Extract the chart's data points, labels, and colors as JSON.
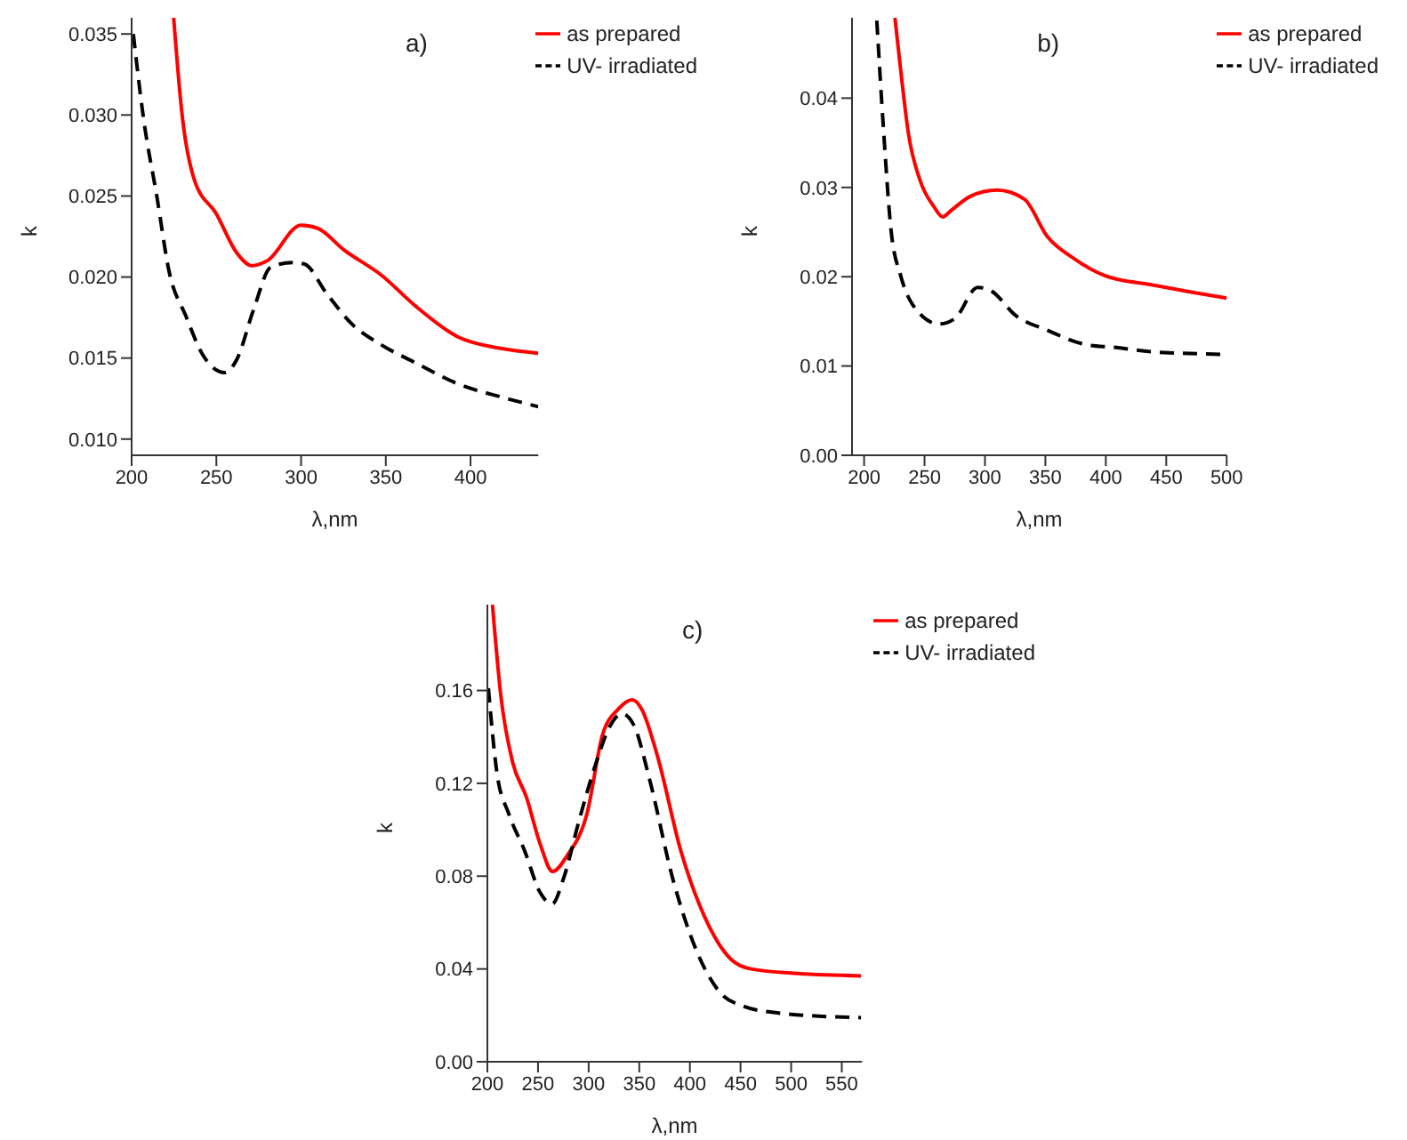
{
  "chart_data": [
    {
      "type": "line",
      "xlabel": "λ,nm",
      "ylabel": "k",
      "annotations": [
        "a)"
      ],
      "legend": "top right",
      "xlim": [
        200,
        440
      ],
      "ylim": [
        0.009,
        0.036
      ],
      "xticks": [
        200,
        250,
        300,
        350,
        400
      ],
      "yticks": [
        {
          "value": 0.01,
          "label": "0.010"
        },
        {
          "value": 0.015,
          "label": "0.015"
        },
        {
          "value": 0.02,
          "label": "0.020"
        },
        {
          "value": 0.025,
          "label": "0.025"
        },
        {
          "value": 0.03,
          "label": "0.030"
        },
        {
          "value": 0.035,
          "label": "0.035"
        }
      ],
      "series": [
        {
          "name": "as prepared",
          "color": "#ff0000",
          "line_style": "solid",
          "x": [
            224.8,
            229.8,
            237,
            250,
            262,
            271,
            280,
            300,
            310,
            325,
            347.6,
            367.7,
            392.7,
            417.8,
            440
          ],
          "values": [
            0.036,
            0.03,
            0.026,
            0.0239,
            0.0215,
            0.0207,
            0.021,
            0.0232,
            0.023,
            0.0217,
            0.0201,
            0.0182,
            0.0163,
            0.0156,
            0.0153
          ]
        },
        {
          "name": "UV- irradiated",
          "color": "#000000",
          "line_style": "dashed",
          "x": [
            201,
            207,
            215,
            222,
            232,
            242,
            255,
            262,
            272,
            282,
            295,
            302,
            315,
            330,
            347.6,
            367.7,
            392.7,
            418,
            440
          ],
          "values": [
            0.035,
            0.0298,
            0.0249,
            0.0204,
            0.0176,
            0.0152,
            0.0141,
            0.0149,
            0.018,
            0.0206,
            0.0209,
            0.0208,
            0.019,
            0.0171,
            0.0158,
            0.0147,
            0.0134,
            0.0126,
            0.012
          ]
        }
      ]
    },
    {
      "type": "line",
      "xlabel": "λ,nm",
      "ylabel": "k",
      "annotations": [
        "b)"
      ],
      "legend": "top right",
      "xlim": [
        190,
        500
      ],
      "ylim": [
        0,
        0.049
      ],
      "xticks": [
        200,
        250,
        300,
        350,
        400,
        450,
        500
      ],
      "yticks": [
        {
          "value": 0,
          "label": "0.00"
        },
        {
          "value": 0.01,
          "label": "0.01"
        },
        {
          "value": 0.02,
          "label": "0.02"
        },
        {
          "value": 0.03,
          "label": "0.03"
        },
        {
          "value": 0.04,
          "label": "0.04"
        }
      ],
      "series": [
        {
          "name": "as prepared",
          "color": "#ff0000",
          "line_style": "solid",
          "x": [
            225.5,
            230.3,
            236.7,
            246,
            258,
            265,
            271.8,
            287.8,
            310,
            332.5,
            351.6,
            374,
            399.5,
            437.8,
            469.7,
            500
          ],
          "values": [
            0.049,
            0.0431,
            0.036,
            0.0309,
            0.0278,
            0.0267,
            0.0274,
            0.029,
            0.0297,
            0.0287,
            0.0245,
            0.022,
            0.0201,
            0.0191,
            0.0183,
            0.0176
          ]
        },
        {
          "name": "UV- irradiated",
          "color": "#000000",
          "line_style": "dashed",
          "x": [
            210.5,
            216,
            222.3,
            230.3,
            240,
            262,
            275,
            294,
            304,
            326,
            351.6,
            383.5,
            405.9,
            437.8,
            500
          ],
          "values": [
            0.0487,
            0.0366,
            0.0252,
            0.0201,
            0.0169,
            0.0147,
            0.0153,
            0.0188,
            0.0185,
            0.0156,
            0.014,
            0.0124,
            0.0121,
            0.0116,
            0.0113
          ]
        }
      ]
    },
    {
      "type": "line",
      "xlabel": "λ,nm",
      "ylabel": "k",
      "annotations": [
        "c)"
      ],
      "legend": "top right",
      "xlim": [
        200,
        570
      ],
      "ylim": [
        0,
        0.197
      ],
      "xticks": [
        200,
        250,
        300,
        350,
        400,
        450,
        500,
        550
      ],
      "yticks": [
        {
          "value": 0,
          "label": "0.00"
        },
        {
          "value": 0.04,
          "label": "0.04"
        },
        {
          "value": 0.08,
          "label": "0.08"
        },
        {
          "value": 0.12,
          "label": "0.12"
        },
        {
          "value": 0.16,
          "label": "0.16"
        }
      ],
      "series": [
        {
          "name": "as prepared",
          "color": "#ff0000",
          "line_style": "solid",
          "x": [
            205,
            213.5,
            225,
            238.6,
            252,
            264.4,
            279,
            298.4,
            313.8,
            329.3,
            343,
            352.4,
            367.8,
            391,
            414,
            441,
            460.4,
            506.7,
            569
          ],
          "values": [
            0.197,
            0.157,
            0.129,
            0.114,
            0.094,
            0.082,
            0.089,
            0.107,
            0.141,
            0.152,
            0.156,
            0.152,
            0.132,
            0.091,
            0.063,
            0.044,
            0.04,
            0.038,
            0.037
          ]
        },
        {
          "name": "UV- irradiated",
          "color": "#000000",
          "line_style": "dashed",
          "x": [
            201,
            209.6,
            221,
            236.7,
            252,
            264,
            275.2,
            290.6,
            306,
            321.5,
            333,
            344.7,
            360,
            383,
            406.4,
            429.5,
            452.7,
            487.5,
            569
          ],
          "values": [
            0.161,
            0.124,
            0.107,
            0.091,
            0.073,
            0.068,
            0.079,
            0.104,
            0.127,
            0.145,
            0.15,
            0.145,
            0.122,
            0.079,
            0.048,
            0.03,
            0.024,
            0.021,
            0.019
          ]
        }
      ]
    }
  ]
}
